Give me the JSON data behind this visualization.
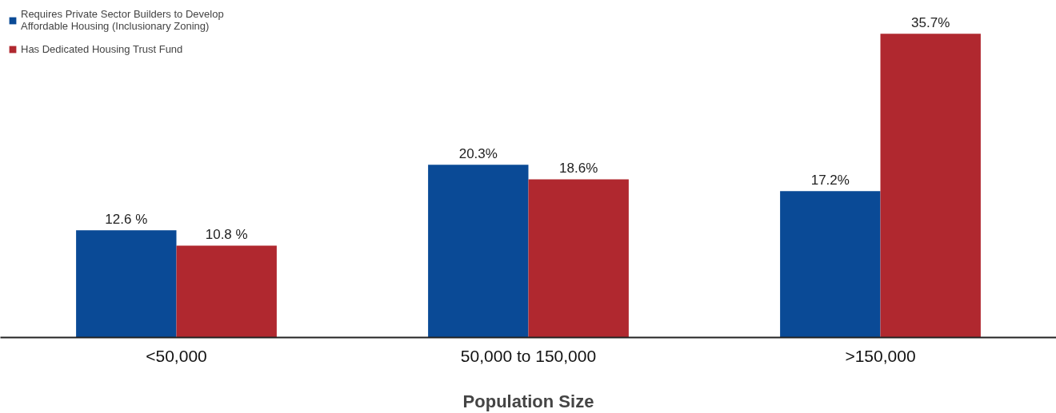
{
  "chart_data": {
    "type": "bar",
    "xlabel": "Population Size",
    "categories": [
      "<50,000",
      "50,000 to 150,000",
      ">150,000"
    ],
    "series": [
      {
        "name": "Requires Private Sector Builders to Develop\nAffordable Housing (Inclusionary Zoning)",
        "color": "#0a4a96",
        "values": [
          12.6,
          20.3,
          17.2
        ],
        "value_labels": [
          "12.6 %",
          "20.3%",
          "17.2%"
        ]
      },
      {
        "name": "Has Dedicated Housing Trust Fund",
        "color": "#b0282f",
        "values": [
          10.8,
          18.6,
          35.7
        ],
        "value_labels": [
          "10.8 %",
          "18.6%",
          "35.7%"
        ]
      }
    ],
    "legend": "top left",
    "grid": false
  }
}
